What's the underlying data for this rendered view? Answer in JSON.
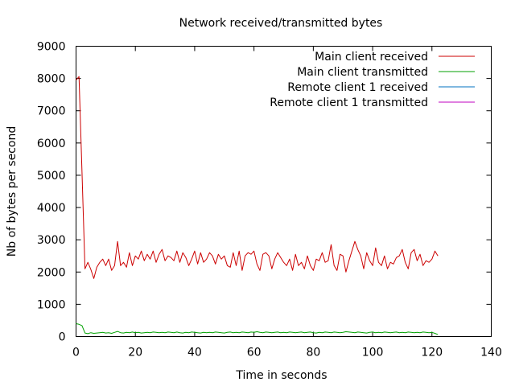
{
  "chart_data": {
    "type": "line",
    "title": "Network received/transmitted bytes",
    "xlabel": "Time in seconds",
    "ylabel": "Nb of bytes per second",
    "xlim": [
      0,
      140
    ],
    "ylim": [
      0,
      9000
    ],
    "xticks": [
      0,
      20,
      40,
      60,
      80,
      100,
      120,
      140
    ],
    "yticks": [
      0,
      1000,
      2000,
      3000,
      4000,
      5000,
      6000,
      7000,
      8000,
      9000
    ],
    "grid": false,
    "legend_position": "top-right",
    "series": [
      {
        "name": "Main client received",
        "color": "#cc0000",
        "x": [
          0,
          1,
          2,
          3,
          4,
          5,
          6,
          7,
          8,
          9,
          10,
          11,
          12,
          13,
          14,
          15,
          16,
          17,
          18,
          19,
          20,
          21,
          22,
          23,
          24,
          25,
          26,
          27,
          28,
          29,
          30,
          31,
          32,
          33,
          34,
          35,
          36,
          37,
          38,
          39,
          40,
          41,
          42,
          43,
          44,
          45,
          46,
          47,
          48,
          49,
          50,
          51,
          52,
          53,
          54,
          55,
          56,
          57,
          58,
          59,
          60,
          61,
          62,
          63,
          64,
          65,
          66,
          67,
          68,
          69,
          70,
          71,
          72,
          73,
          74,
          75,
          76,
          77,
          78,
          79,
          80,
          81,
          82,
          83,
          84,
          85,
          86,
          87,
          88,
          89,
          90,
          91,
          92,
          93,
          94,
          95,
          96,
          97,
          98,
          99,
          100,
          101,
          102,
          103,
          104,
          105,
          106,
          107,
          108,
          109,
          110,
          111,
          112,
          113,
          114,
          115,
          116,
          117,
          118,
          119,
          120,
          121,
          122
        ],
        "values": [
          7950,
          8060,
          5100,
          2100,
          2300,
          2080,
          1800,
          2150,
          2300,
          2400,
          2200,
          2400,
          2050,
          2200,
          2950,
          2200,
          2300,
          2150,
          2600,
          2200,
          2500,
          2400,
          2650,
          2350,
          2550,
          2400,
          2650,
          2300,
          2550,
          2700,
          2350,
          2500,
          2450,
          2350,
          2650,
          2300,
          2600,
          2450,
          2200,
          2400,
          2650,
          2250,
          2600,
          2300,
          2400,
          2600,
          2500,
          2250,
          2550,
          2400,
          2500,
          2200,
          2150,
          2600,
          2200,
          2650,
          2050,
          2500,
          2600,
          2550,
          2650,
          2250,
          2050,
          2550,
          2600,
          2500,
          2100,
          2400,
          2600,
          2450,
          2300,
          2200,
          2400,
          2050,
          2550,
          2200,
          2300,
          2100,
          2500,
          2200,
          2050,
          2400,
          2350,
          2600,
          2300,
          2350,
          2850,
          2200,
          2050,
          2550,
          2500,
          2000,
          2350,
          2650,
          2950,
          2700,
          2500,
          2100,
          2600,
          2350,
          2200,
          2750,
          2300,
          2200,
          2500,
          2100,
          2300,
          2250,
          2450,
          2500,
          2700,
          2300,
          2100,
          2600,
          2700,
          2350,
          2550,
          2200,
          2350,
          2300,
          2400,
          2650,
          2500
        ]
      },
      {
        "name": "Main client transmitted",
        "color": "#00a000",
        "x": [
          0,
          1,
          2,
          3,
          4,
          5,
          6,
          7,
          8,
          9,
          10,
          11,
          12,
          13,
          14,
          15,
          16,
          17,
          18,
          19,
          20,
          21,
          22,
          23,
          24,
          25,
          26,
          27,
          28,
          29,
          30,
          31,
          32,
          33,
          34,
          35,
          36,
          37,
          38,
          39,
          40,
          41,
          42,
          43,
          44,
          45,
          46,
          47,
          48,
          49,
          50,
          51,
          52,
          53,
          54,
          55,
          56,
          57,
          58,
          59,
          60,
          61,
          62,
          63,
          64,
          65,
          66,
          67,
          68,
          69,
          70,
          71,
          72,
          73,
          74,
          75,
          76,
          77,
          78,
          79,
          80,
          81,
          82,
          83,
          84,
          85,
          86,
          87,
          88,
          89,
          90,
          91,
          92,
          93,
          94,
          95,
          96,
          97,
          98,
          99,
          100,
          101,
          102,
          103,
          104,
          105,
          106,
          107,
          108,
          109,
          110,
          111,
          112,
          113,
          114,
          115,
          116,
          117,
          118,
          119,
          120,
          121,
          122
        ],
        "values": [
          400,
          380,
          340,
          110,
          90,
          120,
          100,
          110,
          120,
          130,
          110,
          120,
          100,
          130,
          160,
          120,
          110,
          130,
          120,
          140,
          120,
          130,
          110,
          120,
          130,
          120,
          140,
          130,
          120,
          130,
          120,
          140,
          130,
          120,
          140,
          120,
          110,
          130,
          120,
          140,
          130,
          120,
          110,
          130,
          120,
          130,
          120,
          140,
          130,
          120,
          110,
          130,
          140,
          120,
          130,
          120,
          140,
          130,
          120,
          140,
          130,
          150,
          130,
          120,
          140,
          130,
          120,
          130,
          140,
          120,
          130,
          120,
          140,
          130,
          120,
          130,
          140,
          120,
          130,
          140,
          120,
          110,
          130,
          120,
          140,
          130,
          120,
          140,
          130,
          120,
          130,
          150,
          140,
          130,
          120,
          140,
          130,
          120,
          110,
          130,
          140,
          120,
          130,
          120,
          140,
          130,
          120,
          130,
          140,
          120,
          130,
          120,
          140,
          130,
          120,
          130,
          120,
          140,
          130,
          120,
          130,
          100,
          60
        ]
      },
      {
        "name": "Remote client 1 received",
        "color": "#0070c0",
        "x": [],
        "values": []
      },
      {
        "name": "Remote client 1 transmitted",
        "color": "#c000c0",
        "x": [],
        "values": []
      }
    ]
  }
}
